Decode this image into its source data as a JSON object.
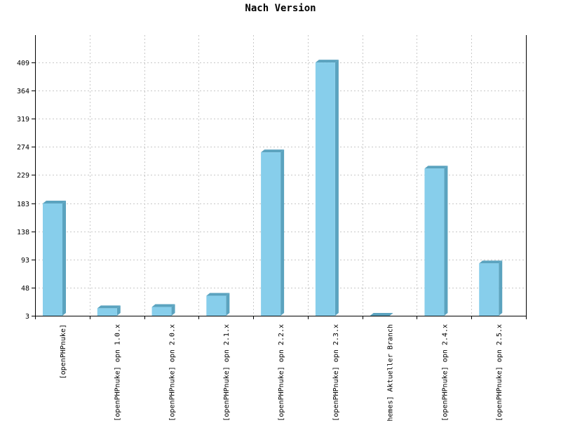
{
  "chart_data": {
    "type": "bar",
    "title": "Nach Version",
    "categories": [
      "[openPHPnuke]",
      "[openPHPnuke] opn 1.0.x",
      "[openPHPnuke] opn 2.0.x",
      "[openPHPnuke] opn 2.1.x",
      "[openPHPnuke] opn 2.2.x",
      "[openPHPnuke] opn 2.3.x",
      "themes] Aktueller Branch",
      "[openPHPnuke] opn 2.4.x",
      "[openPHPnuke] opn 2.5.x"
    ],
    "values": [
      183,
      15,
      17,
      35,
      265,
      409,
      3,
      239,
      87
    ],
    "yticks": [
      3,
      48,
      93,
      138,
      183,
      229,
      274,
      319,
      364,
      409
    ],
    "ylim": [
      3,
      453
    ],
    "grid": true,
    "bar_color": "#87ceeb",
    "bar_side_color": "#5ba3bf",
    "grid_color": "#c8c8c8"
  }
}
